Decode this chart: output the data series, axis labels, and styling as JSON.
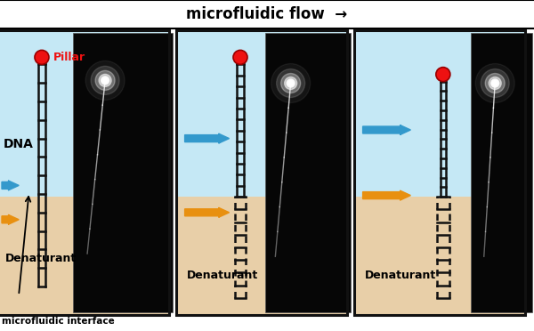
{
  "bg_color": "#ffffff",
  "light_blue": "#c5e8f5",
  "tan_color": "#e8cfa8",
  "panel_border": "#111111",
  "red_color": "#ee1111",
  "blue_arrow": "#3399cc",
  "orange_arrow": "#e89010",
  "ladder_color": "#111111",
  "title_text": "microfluidic flow  →",
  "label_pillar": "Pillar",
  "label_dna": "DNA",
  "label_denaturant": "Denaturant",
  "label_interface": "microfluidic interface",
  "title_fontsize": 12,
  "label_fontsize": 9,
  "dna_fontsize": 10
}
